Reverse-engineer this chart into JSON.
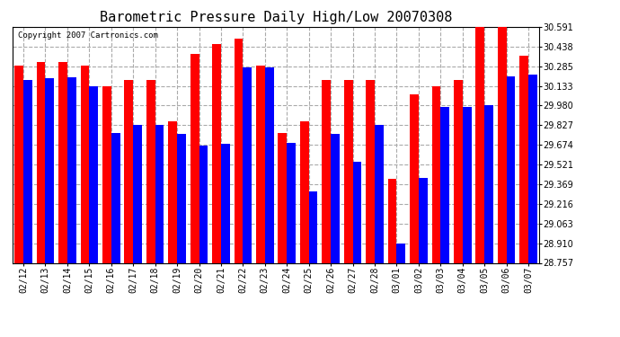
{
  "title": "Barometric Pressure Daily High/Low 20070308",
  "copyright": "Copyright 2007 Cartronics.com",
  "dates": [
    "02/12",
    "02/13",
    "02/14",
    "02/15",
    "02/16",
    "02/17",
    "02/18",
    "02/19",
    "02/20",
    "02/21",
    "02/22",
    "02/23",
    "02/24",
    "02/25",
    "02/26",
    "02/27",
    "02/28",
    "03/01",
    "03/02",
    "03/03",
    "03/04",
    "03/05",
    "03/06",
    "03/07"
  ],
  "highs": [
    30.29,
    30.32,
    30.32,
    30.29,
    30.13,
    30.18,
    30.18,
    29.86,
    30.38,
    30.46,
    30.5,
    30.29,
    29.77,
    29.86,
    30.18,
    30.18,
    30.18,
    29.41,
    30.07,
    30.13,
    30.18,
    30.59,
    30.59,
    30.37
  ],
  "lows": [
    30.18,
    30.19,
    30.2,
    30.13,
    29.77,
    29.83,
    29.83,
    29.76,
    29.67,
    29.68,
    30.28,
    30.28,
    29.69,
    29.31,
    29.76,
    29.54,
    29.83,
    28.91,
    29.42,
    29.97,
    29.97,
    29.98,
    30.21,
    30.22
  ],
  "ymin": 28.757,
  "ymax": 30.591,
  "yticks": [
    28.757,
    28.91,
    29.063,
    29.216,
    29.369,
    29.521,
    29.674,
    29.827,
    29.98,
    30.133,
    30.285,
    30.438,
    30.591
  ],
  "bar_color_high": "#ff0000",
  "bar_color_low": "#0000ff",
  "background_color": "#ffffff",
  "grid_color": "#aaaaaa",
  "title_fontsize": 11,
  "tick_fontsize": 7,
  "copyright_fontsize": 6.5
}
